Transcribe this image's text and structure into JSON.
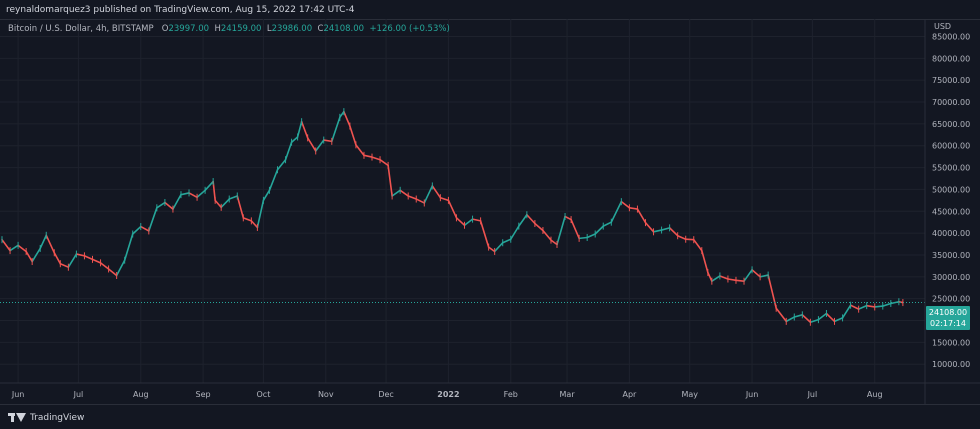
{
  "header": {
    "published_text": "reynaldomarquez3 published on TradingView.com, Aug 15, 2022 17:42 UTC-4"
  },
  "legend": {
    "symbol": "Bitcoin / U.S. Dollar, 4h, BITSTAMP",
    "open_label": "O",
    "open": "23997.00",
    "high_label": "H",
    "high": "24159.00",
    "low_label": "L",
    "low": "23986.00",
    "close_label": "C",
    "close": "24108.00",
    "change": "+126.00 (+0.53%)"
  },
  "price_badge": {
    "price": "24108.00",
    "countdown": "02:17:14"
  },
  "footer": {
    "brand": "TradingView"
  },
  "colors": {
    "background": "#131722",
    "up": "#26a69a",
    "down": "#ef5350",
    "grid": "#1e222d",
    "text": "#b2b5be"
  },
  "chart_data": {
    "type": "line",
    "currency_label": "USD",
    "y_ticks": [
      85000,
      80000,
      75000,
      70000,
      65000,
      60000,
      55000,
      50000,
      45000,
      40000,
      35000,
      30000,
      25000,
      20000,
      15000,
      10000
    ],
    "y_tick_labels": [
      "85000.00",
      "80000.00",
      "75000.00",
      "70000.00",
      "65000.00",
      "60000.00",
      "55000.00",
      "50000.00",
      "45000.00",
      "40000.00",
      "35000.00",
      "30000.00",
      "25000.00",
      "20000.00",
      "15000.00",
      "10000.00"
    ],
    "ylim": [
      5700,
      89000
    ],
    "x_ticks": [
      "Jun",
      "Jul",
      "Aug",
      "Sep",
      "Oct",
      "Nov",
      "Dec",
      "2022",
      "Feb",
      "Mar",
      "Apr",
      "May",
      "Jun",
      "Jul",
      "Aug"
    ],
    "x_tick_dates": [
      "2021-06-01",
      "2021-07-01",
      "2021-08-01",
      "2021-09-01",
      "2021-10-01",
      "2021-11-01",
      "2021-12-01",
      "2022-01-01",
      "2022-02-01",
      "2022-03-01",
      "2022-04-01",
      "2022-05-01",
      "2022-06-01",
      "2022-07-01",
      "2022-08-01"
    ],
    "xlim": [
      "2021-05-23",
      "2022-08-26"
    ],
    "grid": true,
    "last_price": 24108,
    "series": [
      {
        "x": [
          "2021-05-24",
          "2021-05-28",
          "2021-06-01",
          "2021-06-05",
          "2021-06-08",
          "2021-06-12",
          "2021-06-15",
          "2021-06-19",
          "2021-06-22",
          "2021-06-26",
          "2021-06-30",
          "2021-07-04",
          "2021-07-08",
          "2021-07-12",
          "2021-07-16",
          "2021-07-20",
          "2021-07-24",
          "2021-07-28",
          "2021-08-01",
          "2021-08-05",
          "2021-08-09",
          "2021-08-13",
          "2021-08-17",
          "2021-08-21",
          "2021-08-25",
          "2021-08-29",
          "2021-09-02",
          "2021-09-06",
          "2021-09-07",
          "2021-09-10",
          "2021-09-14",
          "2021-09-18",
          "2021-09-21",
          "2021-09-25",
          "2021-09-28",
          "2021-10-01",
          "2021-10-04",
          "2021-10-08",
          "2021-10-12",
          "2021-10-15",
          "2021-10-18",
          "2021-10-20",
          "2021-10-23",
          "2021-10-27",
          "2021-10-31",
          "2021-11-04",
          "2021-11-08",
          "2021-11-10",
          "2021-11-13",
          "2021-11-16",
          "2021-11-20",
          "2021-11-24",
          "2021-11-28",
          "2021-12-02",
          "2021-12-04",
          "2021-12-08",
          "2021-12-12",
          "2021-12-16",
          "2021-12-20",
          "2021-12-24",
          "2021-12-28",
          "2022-01-01",
          "2022-01-05",
          "2022-01-09",
          "2022-01-13",
          "2022-01-17",
          "2022-01-21",
          "2022-01-24",
          "2022-01-28",
          "2022-02-01",
          "2022-02-05",
          "2022-02-09",
          "2022-02-13",
          "2022-02-17",
          "2022-02-21",
          "2022-02-24",
          "2022-02-28",
          "2022-03-03",
          "2022-03-07",
          "2022-03-11",
          "2022-03-15",
          "2022-03-19",
          "2022-03-23",
          "2022-03-28",
          "2022-04-01",
          "2022-04-05",
          "2022-04-09",
          "2022-04-13",
          "2022-04-17",
          "2022-04-21",
          "2022-04-25",
          "2022-04-29",
          "2022-05-03",
          "2022-05-07",
          "2022-05-10",
          "2022-05-12",
          "2022-05-16",
          "2022-05-20",
          "2022-05-24",
          "2022-05-28",
          "2022-06-01",
          "2022-06-05",
          "2022-06-09",
          "2022-06-13",
          "2022-06-18",
          "2022-06-22",
          "2022-06-26",
          "2022-06-30",
          "2022-07-04",
          "2022-07-08",
          "2022-07-12",
          "2022-07-16",
          "2022-07-20",
          "2022-07-24",
          "2022-07-28",
          "2022-08-01",
          "2022-08-05",
          "2022-08-09",
          "2022-08-13",
          "2022-08-15"
        ],
        "y": [
          38500,
          36000,
          37200,
          35800,
          33500,
          36500,
          39500,
          35500,
          33000,
          32200,
          35200,
          34800,
          34000,
          33200,
          31800,
          30300,
          33800,
          39800,
          41500,
          40500,
          45800,
          47000,
          45500,
          48800,
          49200,
          48200,
          49800,
          51800,
          47500,
          45900,
          47800,
          48500,
          43500,
          42800,
          41300,
          47500,
          49800,
          54500,
          56800,
          60800,
          62000,
          65500,
          61800,
          58800,
          61300,
          61000,
          66500,
          67800,
          64500,
          60200,
          57800,
          57400,
          56800,
          55500,
          48500,
          49800,
          48500,
          47800,
          46900,
          50800,
          48100,
          47500,
          43500,
          41800,
          43200,
          42800,
          36800,
          35800,
          37800,
          38600,
          41600,
          44200,
          42200,
          40600,
          38400,
          37400,
          43800,
          43100,
          38800,
          39000,
          39800,
          41600,
          42500,
          47200,
          45800,
          45500,
          42400,
          40300,
          40700,
          41200,
          39400,
          38600,
          38500,
          36000,
          31000,
          29000,
          30200,
          29500,
          29200,
          29000,
          31600,
          30000,
          30400,
          22800,
          19800,
          20800,
          21300,
          19600,
          20200,
          21600,
          19800,
          20600,
          23500,
          22600,
          23400,
          23100,
          23300,
          23900,
          24300,
          24108
        ]
      }
    ]
  }
}
